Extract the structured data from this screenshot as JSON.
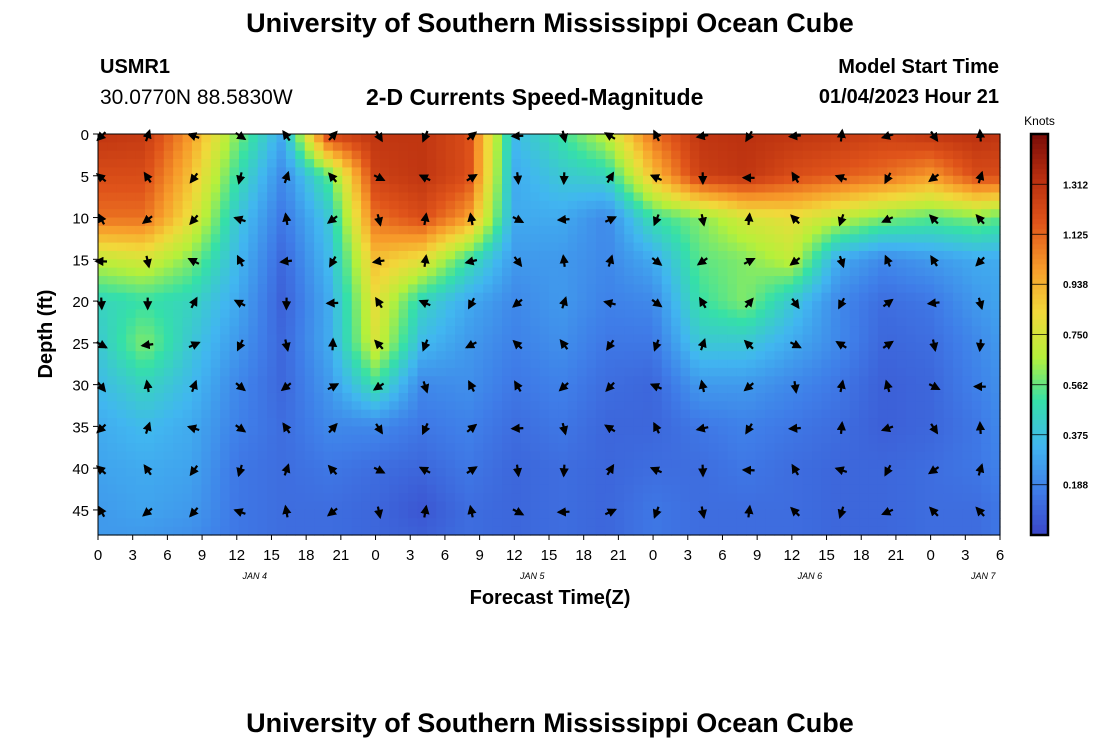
{
  "page": {
    "title_top": "University of Southern Mississippi Ocean Cube",
    "title_bottom": "University of Southern Mississippi Ocean Cube",
    "station_id": "USMR1",
    "coordinates": "30.0770N  88.5830W",
    "subtitle": "2-D Currents Speed-Magnitude",
    "model_start_label": "Model Start Time",
    "model_start_value": "01/04/2023 Hour 21"
  },
  "chart_data": {
    "type": "heatmap",
    "xlabel": "Forecast Time(Z)",
    "ylabel": "Depth (ft)",
    "x_tick_labels": [
      "0",
      "3",
      "6",
      "9",
      "12",
      "15",
      "18",
      "21",
      "0",
      "3",
      "6",
      "9",
      "12",
      "15",
      "18",
      "21",
      "0",
      "3",
      "6",
      "9",
      "12",
      "15",
      "18",
      "21",
      "0",
      "3",
      "6"
    ],
    "x_range_hours": [
      0,
      78
    ],
    "date_labels": [
      {
        "label": "JAN 4",
        "hour": 12
      },
      {
        "label": "JAN 5",
        "hour": 36
      },
      {
        "label": "JAN 6",
        "hour": 60
      },
      {
        "label": "JAN 7",
        "hour": 75
      }
    ],
    "y_ticks": [
      0,
      5,
      10,
      15,
      20,
      25,
      30,
      35,
      40,
      45
    ],
    "y_range_ft": [
      0,
      48
    ],
    "y_reversed": true,
    "colorbar": {
      "label": "Knots",
      "ticks": [
        "1.312",
        "1.125",
        "0.938",
        "0.750",
        "0.562",
        "0.375",
        "0.188"
      ],
      "range": [
        0,
        1.5
      ],
      "colors": [
        "#3a45c8",
        "#3f7de8",
        "#41b6f0",
        "#35e0a8",
        "#b6f03a",
        "#f2d83a",
        "#f79a2a",
        "#e0541a",
        "#b82e0f",
        "#7a0c08"
      ]
    },
    "arrow_depths_ft": [
      0,
      5,
      10,
      15,
      20,
      25,
      30,
      35,
      40,
      45
    ],
    "arrow_hours": [
      0,
      4,
      8,
      12,
      16,
      20,
      24,
      28,
      32,
      36,
      40,
      44,
      48,
      52,
      56,
      60,
      64,
      68,
      72,
      76
    ],
    "speed_grid": {
      "hours": [
        0,
        4,
        8,
        12,
        16,
        20,
        24,
        28,
        32,
        36,
        40,
        44,
        48,
        52,
        56,
        60,
        64,
        68,
        72,
        76,
        78
      ],
      "depths_ft": [
        0,
        5,
        10,
        15,
        20,
        25,
        30,
        35,
        40,
        45,
        48
      ],
      "values_knots": [
        [
          1.3,
          1.28,
          1.0,
          0.6,
          0.3,
          1.25,
          1.3,
          1.3,
          1.2,
          0.35,
          0.5,
          0.7,
          1.1,
          1.3,
          1.32,
          1.3,
          1.28,
          1.25,
          1.3,
          1.32,
          1.3
        ],
        [
          1.2,
          1.2,
          0.9,
          0.5,
          0.2,
          0.55,
          1.25,
          1.3,
          1.2,
          0.3,
          0.4,
          0.45,
          0.9,
          1.25,
          1.3,
          1.2,
          1.15,
          1.1,
          1.0,
          1.2,
          1.2
        ],
        [
          1.1,
          1.1,
          0.8,
          0.4,
          0.15,
          0.4,
          1.1,
          1.2,
          1.0,
          0.3,
          0.3,
          0.2,
          0.5,
          0.6,
          0.75,
          0.8,
          0.7,
          0.6,
          0.55,
          0.6,
          0.55
        ],
        [
          0.7,
          0.75,
          0.6,
          0.35,
          0.1,
          0.35,
          0.9,
          0.8,
          0.5,
          0.25,
          0.25,
          0.2,
          0.3,
          0.55,
          0.6,
          0.7,
          0.3,
          0.2,
          0.25,
          0.3,
          0.3
        ],
        [
          0.45,
          0.5,
          0.45,
          0.3,
          0.08,
          0.3,
          0.8,
          0.45,
          0.3,
          0.2,
          0.25,
          0.18,
          0.2,
          0.5,
          0.6,
          0.4,
          0.2,
          0.12,
          0.15,
          0.25,
          0.28
        ],
        [
          0.4,
          0.6,
          0.4,
          0.25,
          0.1,
          0.3,
          0.75,
          0.35,
          0.25,
          0.18,
          0.22,
          0.15,
          0.15,
          0.4,
          0.4,
          0.3,
          0.2,
          0.1,
          0.12,
          0.2,
          0.25
        ],
        [
          0.35,
          0.45,
          0.35,
          0.2,
          0.1,
          0.25,
          0.5,
          0.2,
          0.22,
          0.15,
          0.18,
          0.12,
          0.1,
          0.25,
          0.25,
          0.2,
          0.15,
          0.08,
          0.1,
          0.18,
          0.22
        ],
        [
          0.3,
          0.35,
          0.3,
          0.18,
          0.12,
          0.2,
          0.2,
          0.15,
          0.18,
          0.12,
          0.15,
          0.1,
          0.1,
          0.15,
          0.18,
          0.15,
          0.12,
          0.08,
          0.1,
          0.15,
          0.2
        ],
        [
          0.28,
          0.3,
          0.28,
          0.15,
          0.12,
          0.15,
          0.12,
          0.1,
          0.15,
          0.1,
          0.12,
          0.1,
          0.12,
          0.12,
          0.15,
          0.12,
          0.1,
          0.1,
          0.12,
          0.15,
          0.18
        ],
        [
          0.25,
          0.28,
          0.25,
          0.15,
          0.12,
          0.12,
          0.1,
          0.05,
          0.12,
          0.1,
          0.12,
          0.1,
          0.15,
          0.12,
          0.12,
          0.12,
          0.1,
          0.1,
          0.12,
          0.12,
          0.15
        ],
        [
          0.25,
          0.25,
          0.22,
          0.15,
          0.12,
          0.12,
          0.1,
          0.08,
          0.12,
          0.1,
          0.12,
          0.1,
          0.15,
          0.12,
          0.12,
          0.12,
          0.1,
          0.1,
          0.12,
          0.12,
          0.15
        ]
      ]
    }
  }
}
